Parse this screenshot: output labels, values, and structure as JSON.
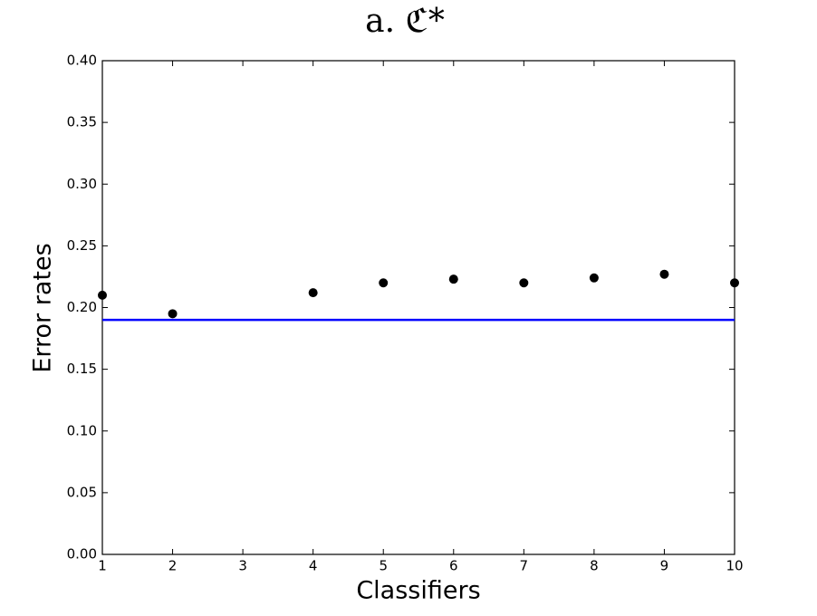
{
  "chart_data": {
    "type": "scatter",
    "title": "a. ℭ*",
    "xlabel": "Classifiers",
    "ylabel": "Error rates",
    "series": [
      {
        "x": [
          1,
          2,
          4,
          5,
          6,
          7,
          8,
          9,
          10
        ],
        "values": [
          0.21,
          0.195,
          0.212,
          0.22,
          0.223,
          0.22,
          0.224,
          0.227,
          0.22
        ],
        "color": "#000000"
      }
    ],
    "hline": {
      "value": 0.19,
      "color": "#0000ff"
    },
    "xlim": [
      1,
      10
    ],
    "xticks": [
      1,
      2,
      3,
      4,
      5,
      6,
      7,
      8,
      9,
      10
    ],
    "ylim": [
      0,
      0.4
    ],
    "yticks": [
      {
        "value": 0,
        "label": "0.00"
      },
      {
        "value": 0.05,
        "label": "0.05"
      },
      {
        "value": 0.1,
        "label": "0.10"
      },
      {
        "value": 0.15,
        "label": "0.15"
      },
      {
        "value": 0.2,
        "label": "0.20"
      },
      {
        "value": 0.25,
        "label": "0.25"
      },
      {
        "value": 0.3,
        "label": "0.30"
      },
      {
        "value": 0.35,
        "label": "0.35"
      },
      {
        "value": 0.4,
        "label": "0.40"
      }
    ],
    "grid": false
  }
}
